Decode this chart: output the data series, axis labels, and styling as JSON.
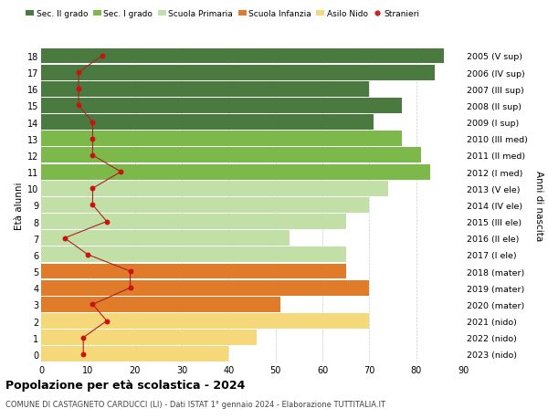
{
  "ages": [
    18,
    17,
    16,
    15,
    14,
    13,
    12,
    11,
    10,
    9,
    8,
    7,
    6,
    5,
    4,
    3,
    2,
    1,
    0
  ],
  "right_labels": [
    "2005 (V sup)",
    "2006 (IV sup)",
    "2007 (III sup)",
    "2008 (II sup)",
    "2009 (I sup)",
    "2010 (III med)",
    "2011 (II med)",
    "2012 (I med)",
    "2013 (V ele)",
    "2014 (IV ele)",
    "2015 (III ele)",
    "2016 (II ele)",
    "2017 (I ele)",
    "2018 (mater)",
    "2019 (mater)",
    "2020 (mater)",
    "2021 (nido)",
    "2022 (nido)",
    "2023 (nido)"
  ],
  "bar_values": [
    86,
    84,
    70,
    77,
    71,
    77,
    81,
    83,
    74,
    70,
    65,
    53,
    65,
    65,
    70,
    51,
    70,
    46,
    40
  ],
  "bar_colors": [
    "#4a7a40",
    "#4a7a40",
    "#4a7a40",
    "#4a7a40",
    "#4a7a40",
    "#7db84a",
    "#7db84a",
    "#7db84a",
    "#c2dfa8",
    "#c2dfa8",
    "#c2dfa8",
    "#c2dfa8",
    "#c2dfa8",
    "#e07b2a",
    "#e07b2a",
    "#e07b2a",
    "#f5d87a",
    "#f5d87a",
    "#f5d87a"
  ],
  "stranieri_values": [
    13,
    8,
    8,
    8,
    11,
    11,
    11,
    17,
    11,
    11,
    14,
    5,
    10,
    19,
    19,
    11,
    14,
    9,
    9
  ],
  "legend_labels": [
    "Sec. II grado",
    "Sec. I grado",
    "Scuola Primaria",
    "Scuola Infanzia",
    "Asilo Nido",
    "Stranieri"
  ],
  "legend_colors": [
    "#4a7a40",
    "#7db84a",
    "#c2dfa8",
    "#e07b2a",
    "#f5d87a",
    "#cc2222"
  ],
  "title": "Popolazione per età scolastica - 2024",
  "subtitle": "COMUNE DI CASTAGNETO CARDUCCI (LI) - Dati ISTAT 1° gennaio 2024 - Elaborazione TUTTITALIA.IT",
  "ylabel_left": "Età alunni",
  "ylabel_right": "Anni di nascita",
  "xlim": [
    0,
    90
  ],
  "bar_height": 0.93,
  "bg_color": "#ffffff",
  "grid_color": "#cccccc"
}
